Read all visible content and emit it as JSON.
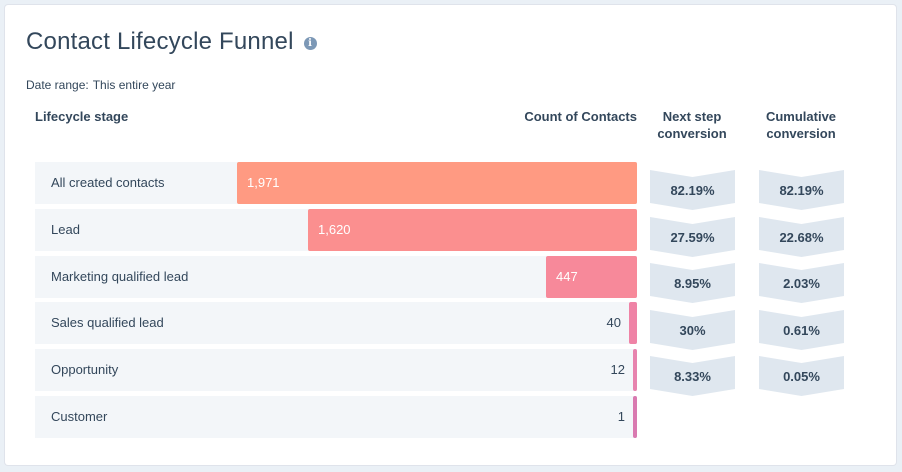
{
  "title": "Contact Lifecycle Funnel",
  "date_range": {
    "label": "Date range:",
    "value": "This entire year"
  },
  "headers": {
    "stage": "Lifecycle stage",
    "count": "Count of Contacts",
    "next_line1": "Next step",
    "next_line2": "conversion",
    "cum_line1": "Cumulative",
    "cum_line2": "conversion"
  },
  "colors": {
    "bars": [
      "#ff9a82",
      "#fb8f8f",
      "#f7899a",
      "#ef83a6",
      "#e783ae",
      "#d97ab0"
    ],
    "row_bg": "#f3f6f9",
    "chevron": "#dfe7ef"
  },
  "chart_data": {
    "type": "bar",
    "title": "Contact Lifecycle Funnel",
    "categories": [
      "All created contacts",
      "Lead",
      "Marketing qualified lead",
      "Sales qualified lead",
      "Opportunity",
      "Customer"
    ],
    "values": [
      1971,
      1620,
      447,
      40,
      12,
      1
    ],
    "value_labels": [
      "1,971",
      "1,620",
      "447",
      "40",
      "12",
      "1"
    ],
    "next_step_conversion": [
      "82.19%",
      "27.59%",
      "8.95%",
      "30%",
      "8.33%"
    ],
    "cumulative_conversion": [
      "82.19%",
      "22.68%",
      "2.03%",
      "0.61%",
      "0.05%"
    ],
    "max": 1971,
    "orientation": "horizontal-right-aligned"
  }
}
